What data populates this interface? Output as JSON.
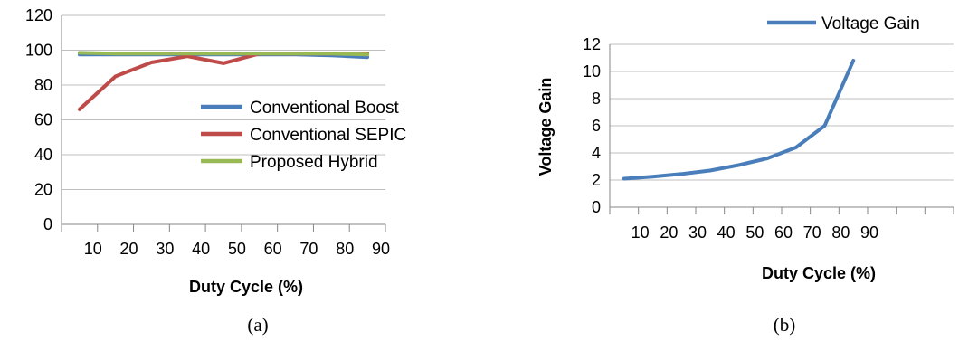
{
  "chart_data": [
    {
      "type": "line",
      "panel_label": "(a)",
      "title": "",
      "xlabel": "Duty Cycle (%)",
      "ylabel": "",
      "x_ticks": [
        "10",
        "20",
        "30",
        "40",
        "50",
        "60",
        "70",
        "80",
        "90"
      ],
      "y_ticks": [
        "0",
        "20",
        "40",
        "60",
        "80",
        "100",
        "120"
      ],
      "ylim": [
        0,
        120
      ],
      "grid": "horizontal",
      "legend_position": "right-middle",
      "x": [
        5,
        15,
        25,
        35,
        45,
        55,
        65,
        75,
        85
      ],
      "series": [
        {
          "name": "Conventional Boost",
          "color": "#4A7EBB",
          "values": [
            97.5,
            97.5,
            97.5,
            97.5,
            97.5,
            97.5,
            97.5,
            97,
            96
          ]
        },
        {
          "name": "Conventional SEPIC",
          "color": "#BE4B48",
          "values": [
            66,
            85,
            93,
            96.5,
            92.5,
            98,
            98,
            98,
            98
          ]
        },
        {
          "name": "Proposed Hybrid",
          "color": "#98B954",
          "values": [
            98.5,
            98,
            98,
            98,
            98,
            98,
            98,
            98,
            97.5
          ]
        }
      ]
    },
    {
      "type": "line",
      "panel_label": "(b)",
      "title": "",
      "xlabel": "Duty Cycle (%)",
      "ylabel": "Voltage Gain",
      "x_ticks": [
        "10",
        "20",
        "30",
        "40",
        "50",
        "60",
        "70",
        "80",
        "90"
      ],
      "y_ticks": [
        "0",
        "2",
        "4",
        "6",
        "8",
        "10",
        "12"
      ],
      "ylim": [
        0,
        12
      ],
      "grid": "horizontal",
      "legend_position": "top-right",
      "x": [
        5,
        15,
        25,
        35,
        45,
        55,
        65,
        75,
        85
      ],
      "series": [
        {
          "name": "Voltage Gain",
          "color": "#4A7EBB",
          "values": [
            2.1,
            2.25,
            2.45,
            2.7,
            3.1,
            3.6,
            4.4,
            6,
            10.8
          ]
        }
      ]
    }
  ]
}
